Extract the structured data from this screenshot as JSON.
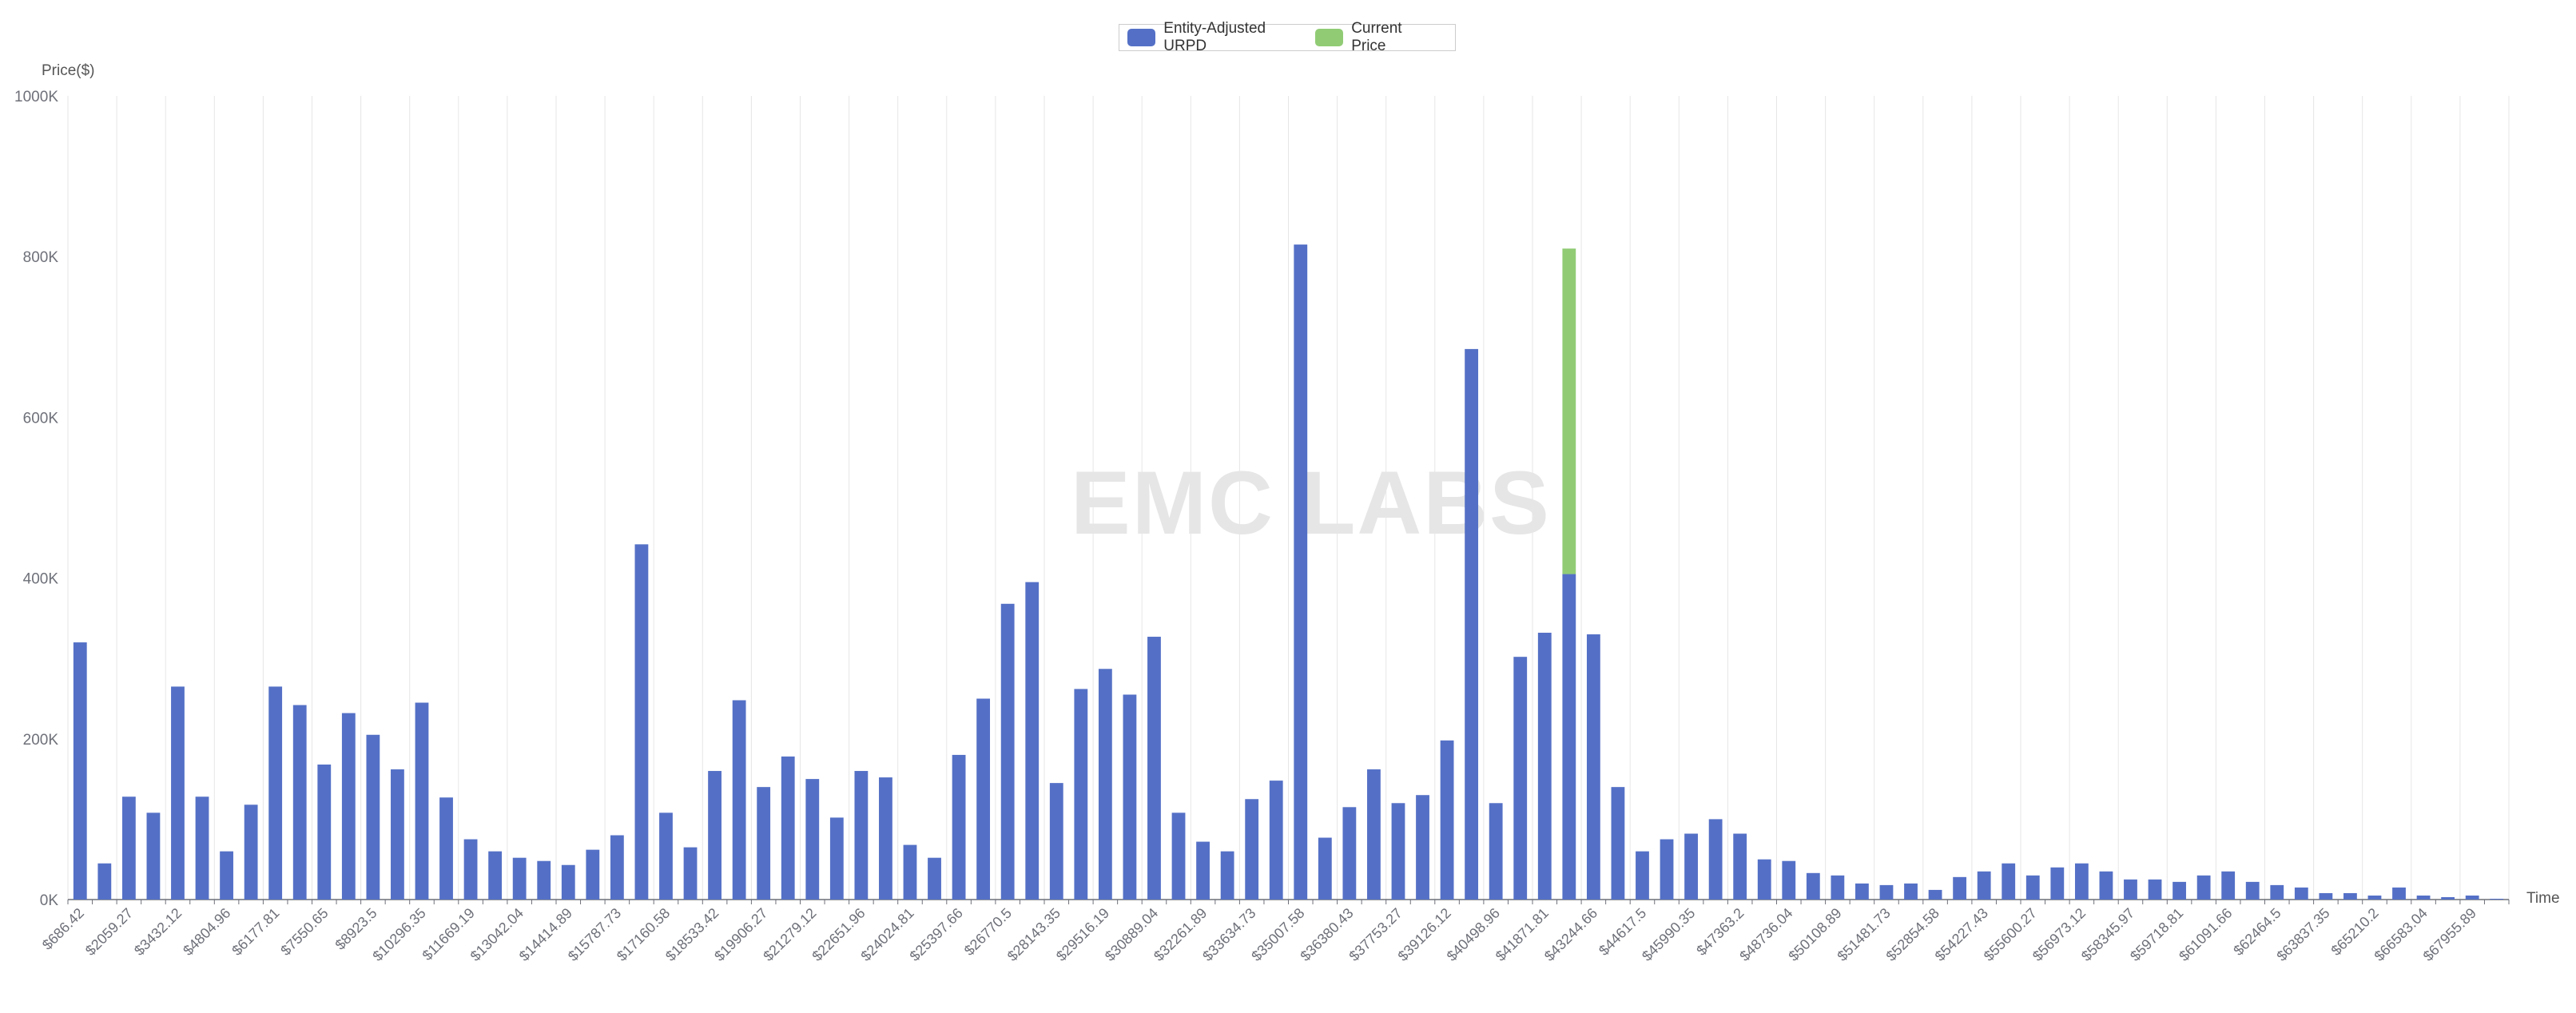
{
  "legend": {
    "items": [
      {
        "label": "Entity-Adjusted URPD",
        "color": "#5470c6"
      },
      {
        "label": "Current Price",
        "color": "#91cc75"
      }
    ]
  },
  "watermark": "EMC LABS",
  "chart_data": {
    "type": "bar",
    "ylabel": "Price($)",
    "xlabel": "Time",
    "ylim": [
      0,
      1000000
    ],
    "yticks": [
      "0K",
      "200K",
      "400K",
      "600K",
      "800K",
      "1000K"
    ],
    "grid": "vertical lines",
    "legend_position": "top-center",
    "xtick_labels": [
      "$686.42",
      "$2059.27",
      "$3432.12",
      "$4804.96",
      "$6177.81",
      "$7550.65",
      "$8923.5",
      "$10296.35",
      "$11669.19",
      "$13042.04",
      "$14414.89",
      "$15787.73",
      "$17160.58",
      "$18533.42",
      "$19906.27",
      "$21279.12",
      "$22651.96",
      "$24024.81",
      "$25397.66",
      "$26770.5",
      "$28143.35",
      "$29516.19",
      "$30889.04",
      "$32261.89",
      "$33634.73",
      "$35007.58",
      "$36380.43",
      "$37753.27",
      "$39126.12",
      "$40498.96",
      "$41871.81",
      "$43244.66",
      "$44617.5",
      "$45990.35",
      "$47363.2",
      "$48736.04",
      "$50108.89",
      "$51481.73",
      "$52854.58",
      "$54227.43",
      "$55600.27",
      "$56973.12",
      "$58345.97",
      "$59718.81",
      "$61091.66",
      "$62464.5",
      "$63837.35",
      "$65210.2",
      "$66583.04",
      "$67955.89"
    ],
    "bin_count": 100,
    "series": [
      {
        "name": "Entity-Adjusted URPD",
        "color": "#5470c6",
        "values": [
          320000,
          45000,
          128000,
          108000,
          265000,
          128000,
          60000,
          118000,
          265000,
          242000,
          168000,
          232000,
          205000,
          162000,
          245000,
          127000,
          75000,
          60000,
          52000,
          48000,
          43000,
          62000,
          80000,
          442000,
          108000,
          65000,
          160000,
          248000,
          140000,
          178000,
          150000,
          102000,
          160000,
          152000,
          68000,
          52000,
          180000,
          250000,
          368000,
          395000,
          145000,
          262000,
          287000,
          255000,
          327000,
          108000,
          72000,
          60000,
          125000,
          148000,
          815000,
          77000,
          115000,
          162000,
          120000,
          130000,
          198000,
          685000,
          120000,
          302000,
          332000,
          405000,
          330000,
          140000,
          60000,
          75000,
          82000,
          100000,
          82000,
          50000,
          48000,
          33000,
          30000,
          20000,
          18000,
          20000,
          12000,
          28000,
          35000,
          45000,
          30000,
          40000,
          45000,
          35000,
          25000,
          25000,
          22000,
          30000,
          35000,
          22000,
          18000,
          15000,
          8000,
          8000,
          5000,
          15000,
          5000,
          3000,
          5000,
          1000
        ]
      },
      {
        "name": "Current Price",
        "color": "#91cc75",
        "bin_index": 61,
        "base": 405000,
        "value": 405000
      }
    ]
  }
}
